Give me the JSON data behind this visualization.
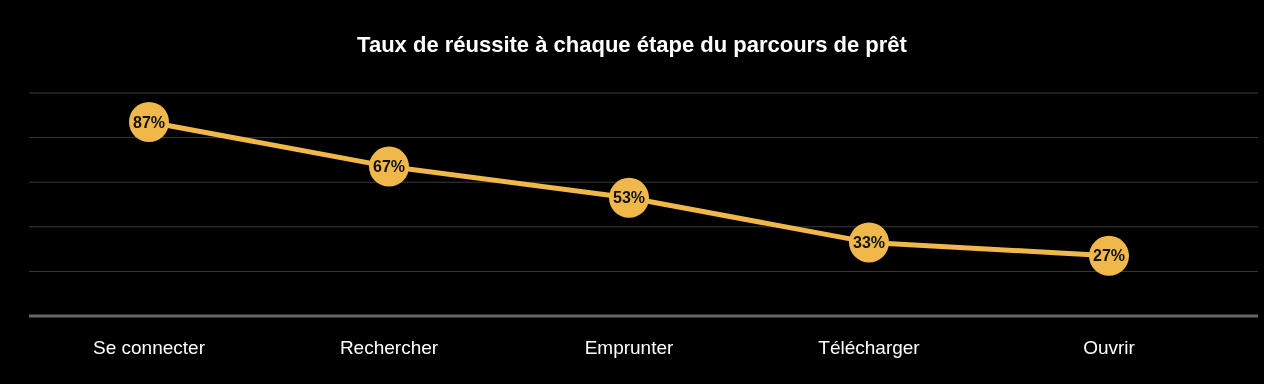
{
  "chart_data": {
    "type": "line",
    "title": "Taux de réussite à chaque étape du parcours de prêt",
    "categories": [
      "Se connecter",
      "Rechercher",
      "Emprunter",
      "Télécharger",
      "Ouvrir"
    ],
    "series": [
      {
        "color": "#f0b84a",
        "values": [
          87,
          67,
          53,
          33,
          27
        ],
        "value_labels": [
          "87%",
          "67%",
          "53%",
          "33%",
          "27%"
        ]
      }
    ],
    "ylim": [
      0,
      100
    ],
    "yticks": [
      {
        "value": 0,
        "label": null
      },
      {
        "value": 20,
        "label": null
      },
      {
        "value": 40,
        "label": null
      },
      {
        "value": 60,
        "label": null
      },
      {
        "value": 80,
        "label": null
      },
      {
        "value": 100,
        "label": null
      }
    ],
    "tick_labels": "x",
    "grid": "y",
    "marker": "circle",
    "line_style": "solid"
  }
}
